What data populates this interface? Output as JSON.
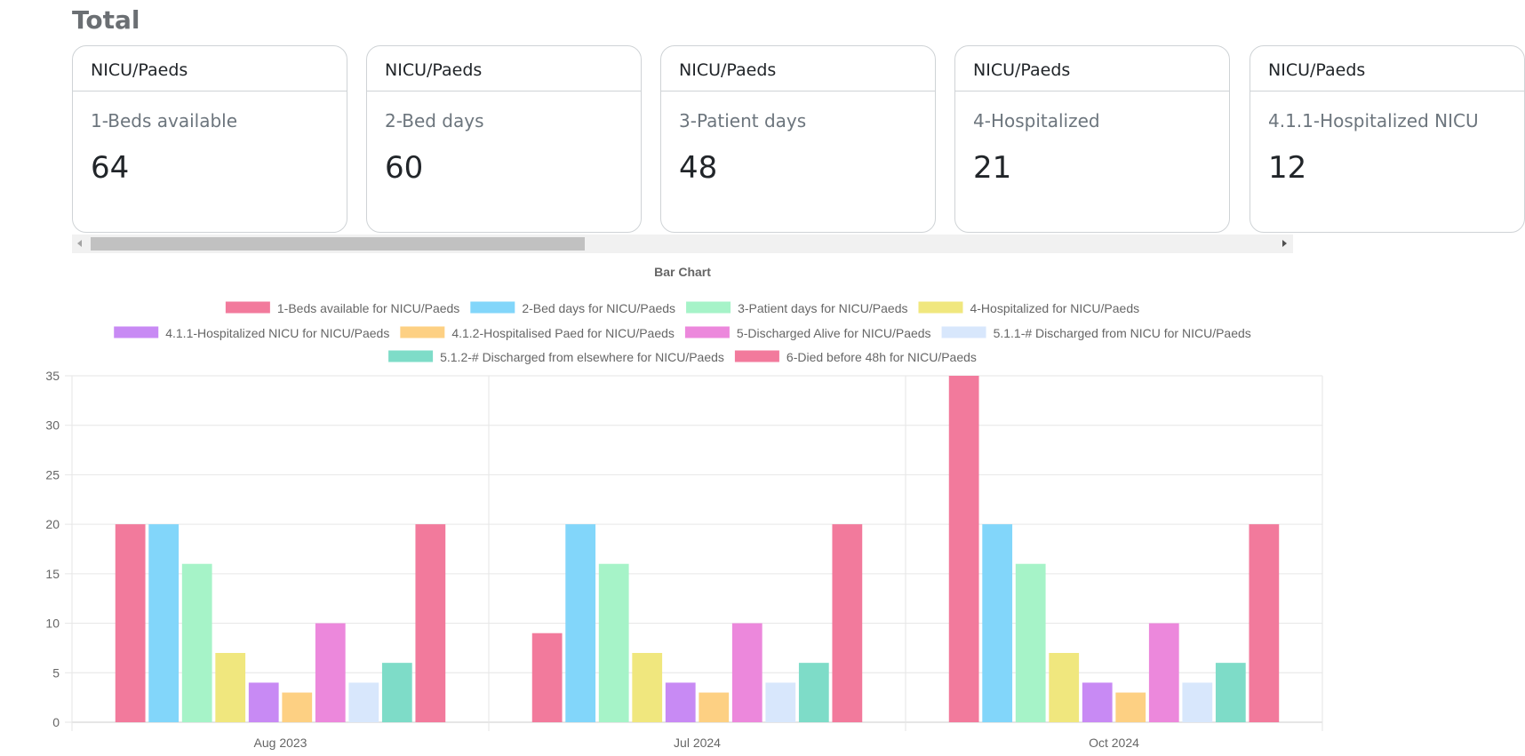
{
  "header": {
    "title": "Total"
  },
  "cards": [
    {
      "unit": "NICU/Paeds",
      "metric": "1-Beds available",
      "value": "64"
    },
    {
      "unit": "NICU/Paeds",
      "metric": "2-Bed days",
      "value": "60"
    },
    {
      "unit": "NICU/Paeds",
      "metric": "3-Patient days",
      "value": "48"
    },
    {
      "unit": "NICU/Paeds",
      "metric": "4-Hospitalized",
      "value": "21"
    },
    {
      "unit": "NICU/Paeds",
      "metric": "4.1.1-Hospitalized NICU",
      "value": "12"
    }
  ],
  "chart_data": {
    "type": "bar",
    "title": "Bar Chart",
    "categories": [
      "Aug 2023",
      "Jul 2024",
      "Oct 2024"
    ],
    "ylim": [
      0,
      35
    ],
    "yticks": [
      0,
      5,
      10,
      15,
      20,
      25,
      30,
      35
    ],
    "grid": true,
    "legend": "top",
    "series": [
      {
        "name": "1-Beds available for NICU/Paeds",
        "color": "#f27a9c",
        "values": [
          20,
          9,
          35
        ]
      },
      {
        "name": "2-Bed days for NICU/Paeds",
        "color": "#82d6fa",
        "values": [
          20,
          20,
          20
        ]
      },
      {
        "name": "3-Patient days for NICU/Paeds",
        "color": "#a6f3c8",
        "values": [
          16,
          16,
          16
        ]
      },
      {
        "name": "4-Hospitalized for NICU/Paeds",
        "color": "#f0e77e",
        "values": [
          7,
          7,
          7
        ]
      },
      {
        "name": "4.1.1-Hospitalized NICU for NICU/Paeds",
        "color": "#c88af4",
        "values": [
          4,
          4,
          4
        ]
      },
      {
        "name": "4.1.2-Hospitalised Paed for NICU/Paeds",
        "color": "#fdd083",
        "values": [
          3,
          3,
          3
        ]
      },
      {
        "name": "5-Discharged Alive for NICU/Paeds",
        "color": "#ec88dc",
        "values": [
          10,
          10,
          10
        ]
      },
      {
        "name": "5.1.1-# Discharged from NICU for NICU/Paeds",
        "color": "#d8e7fc",
        "values": [
          4,
          4,
          4
        ]
      },
      {
        "name": "5.1.2-# Discharged from elsewhere for NICU/Paeds",
        "color": "#7edcc8",
        "values": [
          6,
          6,
          6
        ]
      },
      {
        "name": "6-Died before 48h for NICU/Paeds",
        "color": "#f27a9c",
        "values": [
          20,
          20,
          20
        ]
      }
    ]
  }
}
